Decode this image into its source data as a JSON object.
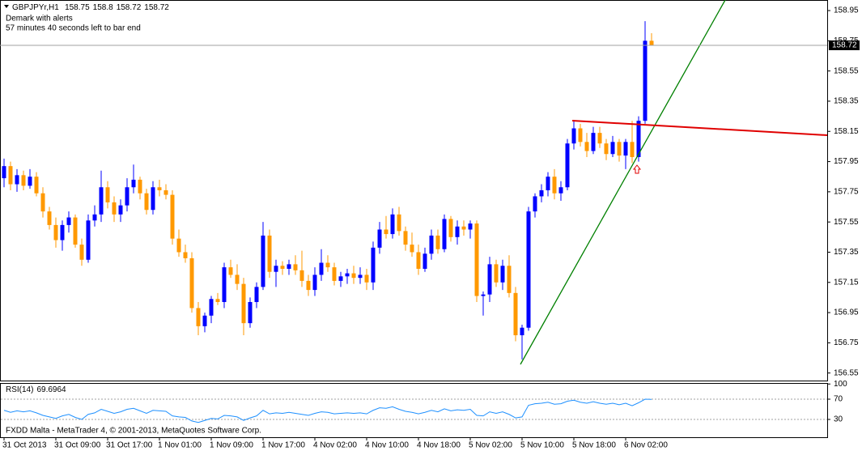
{
  "chart_data": {
    "type": "candlestick",
    "symbol": "GBPJPYr,H1",
    "indicator_name": "Demark with alerts",
    "timer": "57 minutes 40 seconds left to bar end",
    "categories": [
      "31 Oct 2013",
      null,
      null,
      null,
      null,
      null,
      null,
      null,
      "31 Oct 09:00",
      null,
      null,
      null,
      null,
      null,
      null,
      null,
      "31 Oct 17:00",
      null,
      null,
      null,
      null,
      null,
      null,
      null,
      "1 Nov 01:00",
      null,
      null,
      null,
      null,
      null,
      null,
      null,
      "1 Nov 09:00",
      null,
      null,
      null,
      null,
      null,
      null,
      null,
      "1 Nov 17:00",
      null,
      null,
      null,
      null,
      null,
      null,
      null,
      "4 Nov 02:00",
      null,
      null,
      null,
      null,
      null,
      null,
      null,
      "4 Nov 10:00",
      null,
      null,
      null,
      null,
      null,
      null,
      null,
      "4 Nov 18:00",
      null,
      null,
      null,
      null,
      null,
      null,
      null,
      "5 Nov 02:00",
      null,
      null,
      null,
      null,
      null,
      null,
      null,
      "5 Nov 10:00",
      null,
      null,
      null,
      null,
      null,
      null,
      null,
      "5 Nov 18:00",
      null,
      null,
      null,
      null,
      null,
      null,
      null,
      "6 Nov 02:00",
      null,
      null,
      null,
      null
    ],
    "open": [
      157.84,
      157.92,
      157.8,
      157.86,
      157.79,
      157.85,
      157.74,
      157.62,
      157.53,
      157.43,
      157.53,
      157.58,
      157.4,
      157.3,
      157.56,
      157.6,
      157.78,
      157.68,
      157.6,
      157.66,
      157.78,
      157.83,
      157.74,
      157.63,
      157.78,
      157.76,
      157.73,
      157.44,
      157.35,
      157.31,
      156.98,
      156.86,
      156.93,
      157.04,
      157.02,
      157.25,
      157.2,
      157.14,
      156.88,
      157.02,
      157.12,
      157.46,
      157.22,
      157.26,
      157.24,
      157.27,
      157.23,
      157.16,
      157.1,
      157.2,
      157.28,
      157.25,
      157.16,
      157.19,
      157.21,
      157.18,
      157.2,
      157.15,
      157.38,
      157.5,
      157.47,
      157.6,
      157.49,
      157.4,
      157.35,
      157.24,
      157.34,
      157.46,
      157.37,
      157.57,
      157.45,
      157.52,
      157.5,
      157.54,
      157.06,
      157.07,
      157.27,
      157.15,
      157.26,
      157.08,
      156.8,
      156.85,
      157.62,
      157.72,
      157.76,
      157.85,
      157.74,
      157.78,
      158.07,
      158.17,
      158.08,
      158.02,
      158.14,
      158.07,
      158.0,
      158.08,
      157.99,
      158.08,
      157.98,
      158.22,
      158.75
    ],
    "high": [
      157.97,
      157.95,
      157.9,
      157.89,
      157.9,
      157.88,
      157.78,
      157.65,
      157.58,
      157.56,
      157.62,
      157.6,
      157.44,
      157.6,
      157.66,
      157.89,
      157.82,
      157.72,
      157.7,
      157.84,
      157.93,
      157.85,
      157.77,
      157.82,
      157.83,
      157.8,
      157.76,
      157.5,
      157.4,
      157.35,
      157.02,
      156.95,
      157.06,
      157.08,
      157.28,
      157.3,
      157.27,
      157.18,
      157.05,
      157.15,
      157.55,
      157.5,
      157.3,
      157.29,
      157.3,
      157.33,
      157.36,
      157.2,
      157.25,
      157.37,
      157.33,
      157.28,
      157.22,
      157.24,
      157.26,
      157.25,
      157.24,
      157.42,
      157.55,
      157.59,
      157.64,
      157.65,
      157.52,
      157.48,
      157.4,
      157.38,
      157.5,
      157.5,
      157.6,
      157.59,
      157.56,
      157.56,
      157.56,
      157.56,
      157.09,
      157.32,
      157.3,
      157.3,
      157.33,
      157.12,
      156.87,
      157.65,
      157.74,
      157.8,
      157.88,
      157.9,
      157.82,
      158.1,
      158.22,
      158.2,
      158.14,
      158.18,
      158.18,
      158.1,
      158.12,
      158.1,
      158.1,
      158.22,
      158.25,
      158.88,
      158.8
    ],
    "low": [
      157.78,
      157.76,
      157.75,
      157.76,
      157.77,
      157.72,
      157.58,
      157.5,
      157.38,
      157.36,
      157.48,
      157.38,
      157.26,
      157.28,
      157.52,
      157.55,
      157.64,
      157.55,
      157.55,
      157.62,
      157.74,
      157.7,
      157.6,
      157.6,
      157.72,
      157.7,
      157.4,
      157.32,
      157.28,
      156.95,
      156.8,
      156.82,
      156.88,
      157.0,
      156.98,
      157.18,
      157.1,
      156.8,
      156.85,
      156.98,
      157.1,
      157.18,
      157.12,
      157.2,
      157.2,
      157.2,
      157.12,
      157.06,
      157.06,
      157.16,
      157.22,
      157.13,
      157.12,
      157.14,
      157.14,
      157.14,
      157.1,
      157.1,
      157.34,
      157.44,
      157.44,
      157.46,
      157.36,
      157.32,
      157.2,
      157.22,
      157.3,
      157.34,
      157.35,
      157.42,
      157.4,
      157.46,
      157.44,
      157.02,
      156.93,
      157.02,
      157.12,
      157.1,
      157.05,
      156.76,
      156.64,
      156.83,
      157.58,
      157.68,
      157.72,
      157.7,
      157.69,
      157.76,
      158.03,
      158.05,
      157.98,
      158.0,
      158.04,
      157.96,
      157.98,
      157.95,
      157.9,
      157.94,
      157.95,
      158.2,
      158.72
    ],
    "close": [
      157.92,
      157.8,
      157.86,
      157.79,
      157.85,
      157.74,
      157.62,
      157.53,
      157.43,
      157.53,
      157.58,
      157.4,
      157.3,
      157.56,
      157.6,
      157.78,
      157.68,
      157.6,
      157.66,
      157.78,
      157.83,
      157.74,
      157.63,
      157.78,
      157.76,
      157.73,
      157.44,
      157.35,
      157.31,
      156.98,
      156.86,
      156.93,
      157.04,
      157.02,
      157.25,
      157.2,
      157.14,
      156.88,
      157.02,
      157.12,
      157.46,
      157.22,
      157.26,
      157.24,
      157.27,
      157.23,
      157.16,
      157.1,
      157.2,
      157.28,
      157.25,
      157.16,
      157.19,
      157.21,
      157.18,
      157.2,
      157.15,
      157.38,
      157.5,
      157.47,
      157.6,
      157.49,
      157.4,
      157.35,
      157.24,
      157.34,
      157.46,
      157.37,
      157.57,
      157.45,
      157.52,
      157.5,
      157.54,
      157.06,
      157.07,
      157.27,
      157.15,
      157.26,
      157.08,
      156.8,
      156.85,
      157.62,
      157.72,
      157.76,
      157.85,
      157.74,
      157.78,
      158.07,
      158.17,
      158.08,
      158.02,
      158.14,
      158.07,
      158.0,
      158.08,
      157.99,
      158.08,
      157.98,
      158.22,
      158.75,
      158.72
    ],
    "up_color": "#0000ff",
    "down_color": "#ff9900",
    "ylim": [
      156.5,
      159.02
    ],
    "yticks": [
      158.95,
      158.75,
      158.55,
      158.35,
      158.15,
      157.95,
      157.75,
      157.55,
      157.35,
      157.15,
      156.95,
      156.75,
      156.55
    ],
    "last_price": 158.72,
    "rsi": {
      "type": "line",
      "name": "RSI(14)",
      "color": "#1e90ff",
      "values": [
        48,
        44,
        47,
        45,
        47,
        43,
        38,
        35,
        32,
        37,
        40,
        34,
        30,
        40,
        43,
        50,
        46,
        42,
        45,
        50,
        52,
        47,
        42,
        48,
        47,
        46,
        37,
        35,
        34,
        27,
        24,
        28,
        32,
        31,
        38,
        37,
        35,
        28,
        33,
        37,
        48,
        41,
        43,
        42,
        44,
        42,
        40,
        38,
        42,
        45,
        44,
        41,
        42,
        43,
        42,
        43,
        41,
        48,
        53,
        52,
        55,
        50,
        46,
        44,
        41,
        44,
        48,
        45,
        51,
        47,
        49,
        48,
        50,
        38,
        37,
        45,
        42,
        45,
        40,
        33,
        35,
        58,
        61,
        62,
        64,
        60,
        61,
        66,
        68,
        64,
        62,
        65,
        62,
        60,
        62,
        59,
        62,
        57,
        63,
        70,
        69.6964
      ],
      "ylim": [
        0,
        100
      ],
      "yticks": [
        100,
        70,
        30
      ]
    },
    "footer": "FXDD Malta - MetaTrader 4, © 2001-2013, MetaQuotes Software Corp."
  }
}
